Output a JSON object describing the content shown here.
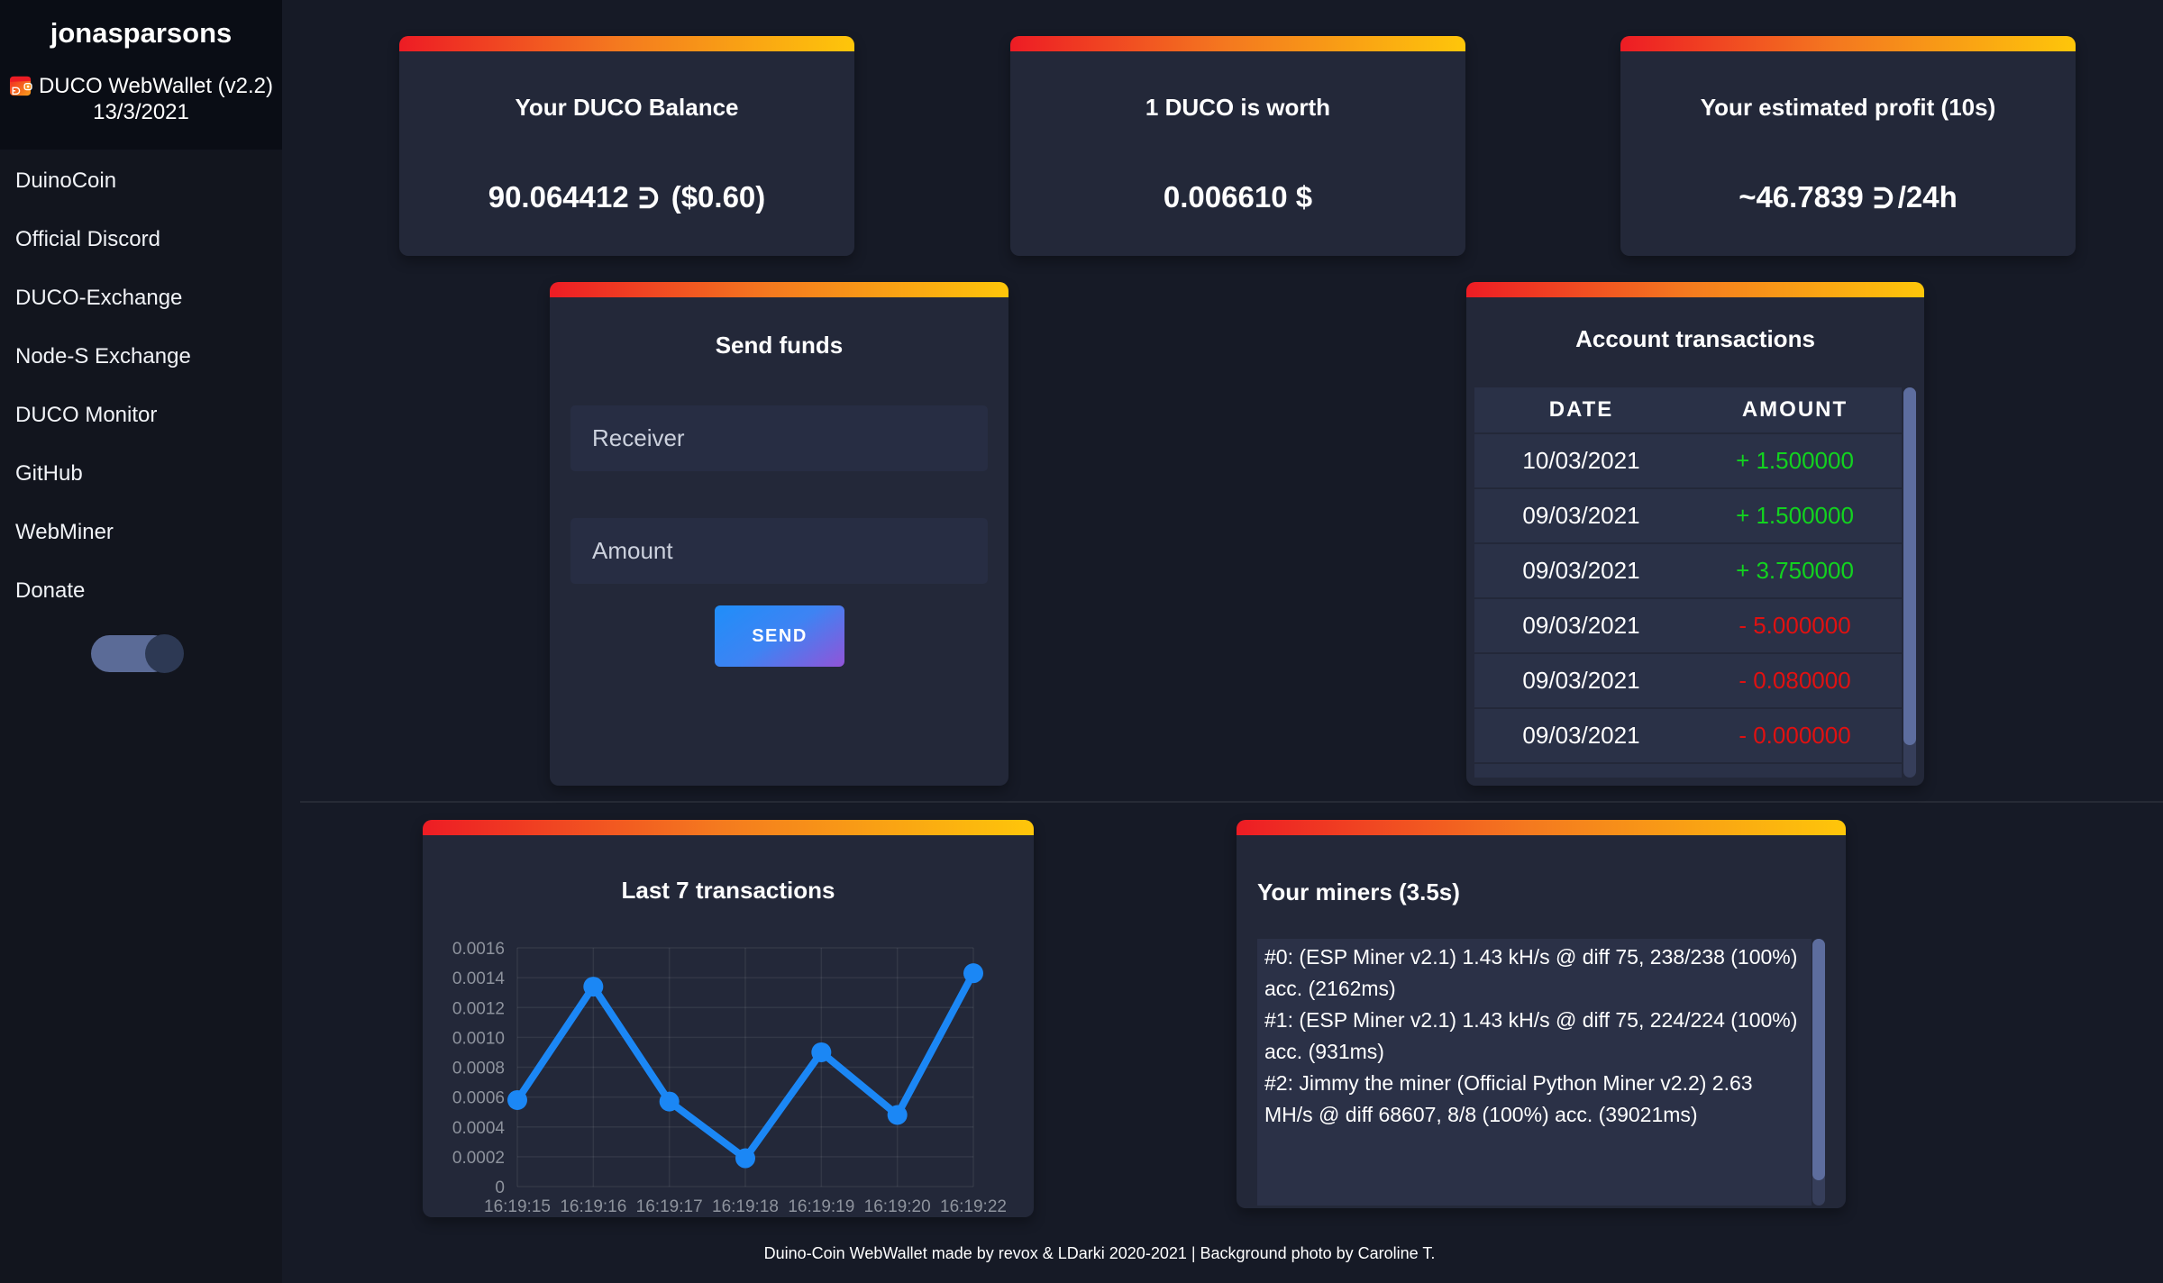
{
  "sidebar": {
    "username": "jonasparsons",
    "app_title": "DUCO WebWallet (v2.2)",
    "app_date": "13/3/2021",
    "items": [
      {
        "label": "DuinoCoin"
      },
      {
        "label": "Official Discord"
      },
      {
        "label": "DUCO-Exchange"
      },
      {
        "label": "Node-S Exchange"
      },
      {
        "label": "DUCO Monitor"
      },
      {
        "label": "GitHub"
      },
      {
        "label": "WebMiner"
      },
      {
        "label": "Donate"
      }
    ],
    "dark_mode_toggle": {
      "state": "on"
    }
  },
  "cards": {
    "balance": {
      "title": "Your DUCO Balance",
      "amount": "90.064412",
      "currency_symbol": "Ð",
      "usd": "($0.60)"
    },
    "price": {
      "title": "1 DUCO is worth",
      "value": "0.006610 $"
    },
    "profit": {
      "title": "Your estimated profit (10s)",
      "amount": "~46.7839",
      "currency_symbol": "Ð",
      "suffix": "/24h"
    }
  },
  "send_funds": {
    "title": "Send funds",
    "receiver_placeholder": "Receiver",
    "amount_placeholder": "Amount",
    "send_label": "SEND"
  },
  "transactions": {
    "title": "Account transactions",
    "columns": [
      "DATE",
      "AMOUNT"
    ],
    "rows": [
      {
        "date": "10/03/2021",
        "amount": "+ 1.500000",
        "direction": "amt-pos"
      },
      {
        "date": "09/03/2021",
        "amount": "+ 1.500000",
        "direction": "amt-pos"
      },
      {
        "date": "09/03/2021",
        "amount": "+ 3.750000",
        "direction": "amt-pos"
      },
      {
        "date": "09/03/2021",
        "amount": "- 5.000000",
        "direction": "amt-neg"
      },
      {
        "date": "09/03/2021",
        "amount": "- 0.080000",
        "direction": "amt-neg"
      },
      {
        "date": "09/03/2021",
        "amount": "- 0.000000",
        "direction": "amt-neg"
      }
    ]
  },
  "chart_data": {
    "type": "line",
    "title": "Last 7 transactions",
    "categories": [
      "16:19:15",
      "16:19:16",
      "16:19:17",
      "16:19:18",
      "16:19:19",
      "16:19:20",
      "16:19:22"
    ],
    "values": [
      0.00058,
      0.00134,
      0.00057,
      0.00019,
      0.0009,
      0.00048,
      0.00143
    ],
    "xlabel": "",
    "ylabel": "",
    "ylim": [
      0,
      0.0016
    ],
    "ytick_step": 0.0002,
    "grid": "on",
    "legend": "none",
    "line_color": "#1b87f5",
    "point_color": "#1b87f5",
    "tick_color": "#8e939d"
  },
  "miners": {
    "title": "Your miners (3.5s)",
    "lines": [
      "#0: (ESP Miner v2.1) 1.43 kH/s @ diff 75, 238/238 (100%) acc. (2162ms)",
      "#1: (ESP Miner v2.1) 1.43 kH/s @ diff 75, 224/224 (100%) acc. (931ms)",
      "#2: Jimmy the miner (Official Python Miner v2.2) 2.63 MH/s @ diff 68607, 8/8 (100%) acc. (39021ms)"
    ]
  },
  "footer": "Duino-Coin WebWallet made by revox & LDarki 2020-2021 | Background photo by Caroline T."
}
